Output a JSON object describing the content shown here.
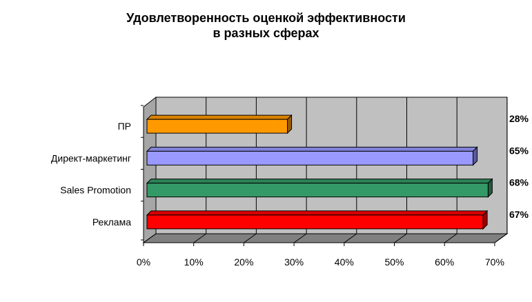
{
  "chart_data": {
    "type": "bar",
    "orientation": "horizontal",
    "style": "3d",
    "title": "Удовлетворенность оценкой эффективности\nв разных сферах",
    "title_lines": [
      "Удовлетворенность оценкой эффективности",
      "в разных сферах"
    ],
    "categories": [
      "ПР",
      "Директ-маркетинг",
      "Sales Promotion",
      "Реклама"
    ],
    "values": [
      28,
      65,
      68,
      67
    ],
    "data_labels": [
      "28%",
      "65%",
      "68%",
      "67%"
    ],
    "xlim": [
      0,
      70
    ],
    "xticks": [
      "0%",
      "10%",
      "20%",
      "30%",
      "40%",
      "50%",
      "60%",
      "70%"
    ],
    "grid": true,
    "legend": "none",
    "colors": {
      "ПР": "#FF9900",
      "Директ-маркетинг": "#9999FF",
      "Sales Promotion": "#339966",
      "Реклама": "#FF0000",
      "plot_back": "#C0C0C0",
      "floor": "#808080",
      "wall_side": "#A6A6A6"
    }
  }
}
